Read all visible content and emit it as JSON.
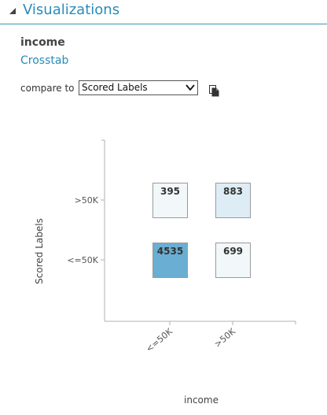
{
  "panel": {
    "title": "Visualizations",
    "collapse_icon": "triangle-down-icon"
  },
  "column": {
    "name": "income",
    "viz_type": "Crosstab"
  },
  "compare": {
    "label": "compare to",
    "selected": "Scored Labels",
    "copy_icon": "copy-icon"
  },
  "colors": {
    "accent": "#2a8bb8",
    "cell_high": "#6aaed3",
    "cell_mid": "#deedf5",
    "cell_low": "#f2f7fa",
    "cell_border": "#9a9a9a"
  },
  "chart_data": {
    "type": "heatmap",
    "xlabel": "income",
    "ylabel": "Scored Labels",
    "x_categories": [
      "<=50K",
      ">50K"
    ],
    "y_categories": [
      ">50K",
      "<=50K"
    ],
    "cells": [
      {
        "x": "<=50K",
        "y": ">50K",
        "value": 395
      },
      {
        "x": ">50K",
        "y": ">50K",
        "value": 883
      },
      {
        "x": "<=50K",
        "y": "<=50K",
        "value": 4535
      },
      {
        "x": ">50K",
        "y": "<=50K",
        "value": 699
      }
    ]
  }
}
